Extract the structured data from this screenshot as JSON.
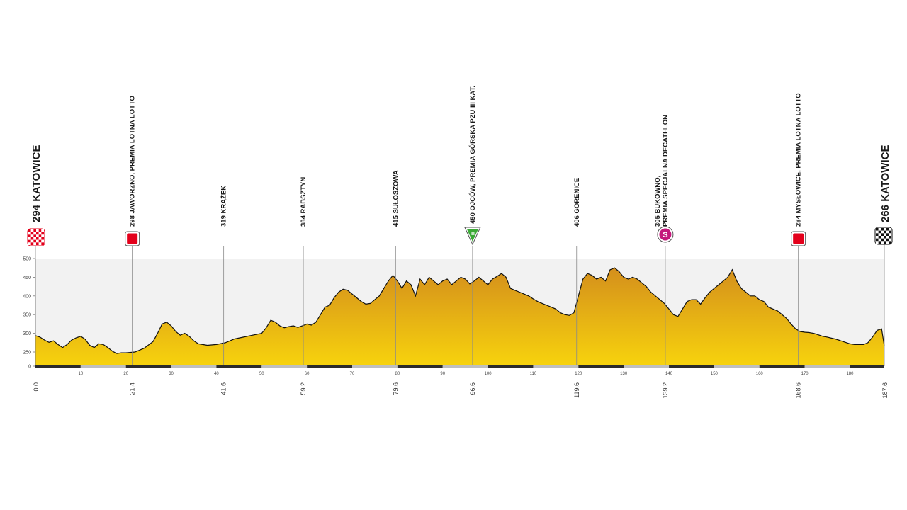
{
  "colors": {
    "fill_top": "#d48f1c",
    "fill_bottom": "#f7d30d",
    "outline": "#111111",
    "band": "#f2f2f2",
    "sprint": "#e3001b",
    "mountain": "#3aa935",
    "special": "#c4177c",
    "axis": "#2b2b2b"
  },
  "chart_data": {
    "type": "area",
    "xlabel": "",
    "ylabel": "",
    "xlim": [
      0,
      187.6
    ],
    "ylim": [
      0,
      500
    ],
    "y_ticks": [
      "0",
      "250",
      "300",
      "350",
      "400",
      "450",
      "500"
    ],
    "x_ticks": [
      "10",
      "20",
      "30",
      "40",
      "50",
      "60",
      "70",
      "80",
      "90",
      "100",
      "110",
      "120",
      "130",
      "140",
      "150",
      "160",
      "170",
      "180"
    ],
    "start": {
      "km": "0.0",
      "label": "294 KATOWICE",
      "icon": "checkered-flag-red-icon"
    },
    "finish": {
      "km": "187.6",
      "label": "266 KATOWICE",
      "icon": "checkered-flag-icon"
    },
    "waypoints": [
      {
        "km": "21.4",
        "lines": [
          "298 JAWORZNO, PREMIA LOTNA LOTTO"
        ],
        "symbol": "sprint"
      },
      {
        "km": "41.6",
        "lines": [
          "319 KRĄŻEK"
        ],
        "symbol": ""
      },
      {
        "km": "59.2",
        "lines": [
          "384 RABSZTYN"
        ],
        "symbol": ""
      },
      {
        "km": "79.6",
        "lines": [
          "415 SUŁOSZOWA"
        ],
        "symbol": ""
      },
      {
        "km": "96.6",
        "lines": [
          "450 OJCÓW, PREMIA GÓRSKA PZU III KAT."
        ],
        "symbol": "mountain",
        "symbol_text": "III"
      },
      {
        "km": "119.6",
        "lines": [
          "406 GORENICE"
        ],
        "symbol": ""
      },
      {
        "km": "139.2",
        "lines": [
          "305 BUKOWNO,",
          "PREMIA SPECJALNA DECATHLON"
        ],
        "symbol": "special",
        "symbol_text": "S"
      },
      {
        "km": "168.6",
        "lines": [
          "284 MYSŁOWICE, PREMIA LOTNA LOTTO"
        ],
        "symbol": "sprint"
      }
    ],
    "profile": [
      [
        0,
        294
      ],
      [
        1,
        290
      ],
      [
        2,
        282
      ],
      [
        3,
        276
      ],
      [
        4,
        280
      ],
      [
        5,
        270
      ],
      [
        6,
        262
      ],
      [
        7,
        270
      ],
      [
        8,
        282
      ],
      [
        9,
        288
      ],
      [
        10,
        292
      ],
      [
        11,
        284
      ],
      [
        12,
        268
      ],
      [
        13,
        262
      ],
      [
        14,
        272
      ],
      [
        15,
        270
      ],
      [
        16,
        262
      ],
      [
        17,
        252
      ],
      [
        18,
        246
      ],
      [
        19,
        248
      ],
      [
        20,
        248
      ],
      [
        22,
        250
      ],
      [
        24,
        260
      ],
      [
        26,
        278
      ],
      [
        27,
        300
      ],
      [
        28,
        325
      ],
      [
        29,
        330
      ],
      [
        30,
        320
      ],
      [
        31,
        305
      ],
      [
        32,
        295
      ],
      [
        33,
        300
      ],
      [
        34,
        292
      ],
      [
        35,
        280
      ],
      [
        36,
        272
      ],
      [
        38,
        268
      ],
      [
        40,
        270
      ],
      [
        42,
        275
      ],
      [
        44,
        285
      ],
      [
        46,
        290
      ],
      [
        48,
        295
      ],
      [
        50,
        300
      ],
      [
        51,
        315
      ],
      [
        52,
        335
      ],
      [
        53,
        330
      ],
      [
        54,
        320
      ],
      [
        55,
        315
      ],
      [
        56,
        318
      ],
      [
        57,
        320
      ],
      [
        58,
        316
      ],
      [
        59,
        320
      ],
      [
        60,
        325
      ],
      [
        61,
        322
      ],
      [
        62,
        330
      ],
      [
        63,
        350
      ],
      [
        64,
        370
      ],
      [
        65,
        375
      ],
      [
        66,
        395
      ],
      [
        67,
        410
      ],
      [
        68,
        418
      ],
      [
        69,
        415
      ],
      [
        70,
        405
      ],
      [
        71,
        395
      ],
      [
        72,
        385
      ],
      [
        73,
        378
      ],
      [
        74,
        380
      ],
      [
        75,
        390
      ],
      [
        76,
        400
      ],
      [
        77,
        420
      ],
      [
        78,
        440
      ],
      [
        79,
        455
      ],
      [
        80,
        440
      ],
      [
        81,
        420
      ],
      [
        82,
        440
      ],
      [
        83,
        430
      ],
      [
        84,
        400
      ],
      [
        85,
        445
      ],
      [
        86,
        430
      ],
      [
        87,
        450
      ],
      [
        88,
        440
      ],
      [
        89,
        430
      ],
      [
        90,
        440
      ],
      [
        91,
        445
      ],
      [
        92,
        430
      ],
      [
        93,
        440
      ],
      [
        94,
        450
      ],
      [
        95,
        445
      ],
      [
        96,
        432
      ],
      [
        97,
        440
      ],
      [
        98,
        450
      ],
      [
        99,
        440
      ],
      [
        100,
        430
      ],
      [
        101,
        445
      ],
      [
        102,
        452
      ],
      [
        103,
        460
      ],
      [
        104,
        450
      ],
      [
        105,
        420
      ],
      [
        106,
        415
      ],
      [
        107,
        410
      ],
      [
        108,
        405
      ],
      [
        109,
        400
      ],
      [
        110,
        392
      ],
      [
        111,
        385
      ],
      [
        112,
        380
      ],
      [
        113,
        375
      ],
      [
        114,
        370
      ],
      [
        115,
        365
      ],
      [
        116,
        355
      ],
      [
        117,
        350
      ],
      [
        118,
        348
      ],
      [
        119,
        355
      ],
      [
        120,
        400
      ],
      [
        121,
        445
      ],
      [
        122,
        460
      ],
      [
        123,
        455
      ],
      [
        124,
        445
      ],
      [
        125,
        450
      ],
      [
        126,
        440
      ],
      [
        127,
        470
      ],
      [
        128,
        475
      ],
      [
        129,
        465
      ],
      [
        130,
        450
      ],
      [
        131,
        445
      ],
      [
        132,
        450
      ],
      [
        133,
        445
      ],
      [
        134,
        435
      ],
      [
        135,
        425
      ],
      [
        136,
        410
      ],
      [
        137,
        400
      ],
      [
        138,
        390
      ],
      [
        139,
        380
      ],
      [
        140,
        365
      ],
      [
        141,
        350
      ],
      [
        142,
        345
      ],
      [
        143,
        365
      ],
      [
        144,
        385
      ],
      [
        145,
        390
      ],
      [
        146,
        390
      ],
      [
        147,
        378
      ],
      [
        148,
        395
      ],
      [
        149,
        410
      ],
      [
        150,
        420
      ],
      [
        151,
        430
      ],
      [
        152,
        440
      ],
      [
        153,
        450
      ],
      [
        154,
        470
      ],
      [
        155,
        440
      ],
      [
        156,
        420
      ],
      [
        157,
        410
      ],
      [
        158,
        400
      ],
      [
        159,
        400
      ],
      [
        160,
        390
      ],
      [
        161,
        385
      ],
      [
        162,
        370
      ],
      [
        163,
        365
      ],
      [
        164,
        360
      ],
      [
        165,
        350
      ],
      [
        166,
        340
      ],
      [
        167,
        325
      ],
      [
        168,
        312
      ],
      [
        169,
        305
      ],
      [
        170,
        303
      ],
      [
        171,
        302
      ],
      [
        172,
        300
      ],
      [
        173,
        296
      ],
      [
        174,
        292
      ],
      [
        175,
        290
      ],
      [
        176,
        287
      ],
      [
        177,
        284
      ],
      [
        178,
        280
      ],
      [
        179,
        276
      ],
      [
        180,
        272
      ],
      [
        181,
        270
      ],
      [
        182,
        270
      ],
      [
        183,
        270
      ],
      [
        184,
        275
      ],
      [
        185,
        290
      ],
      [
        186,
        308
      ],
      [
        187,
        312
      ],
      [
        187.6,
        266
      ]
    ]
  }
}
